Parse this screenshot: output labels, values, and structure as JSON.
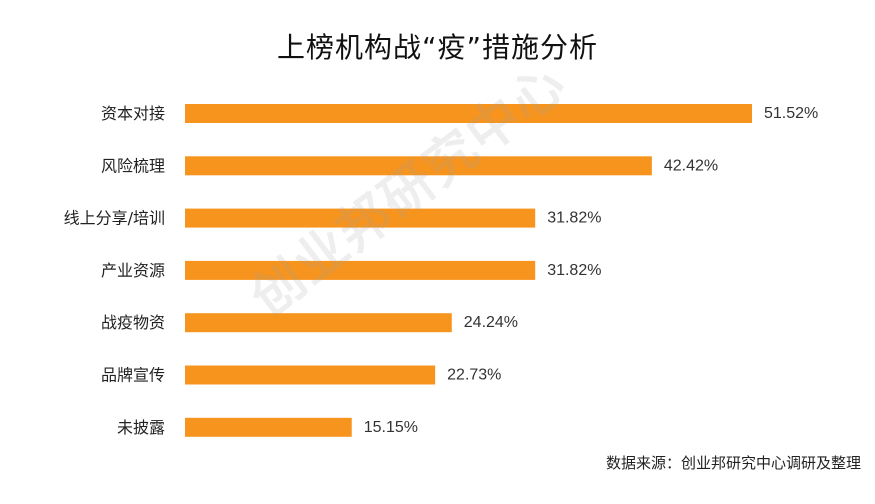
{
  "chart_data": {
    "type": "bar",
    "orientation": "horizontal",
    "title": "上榜机构战“疫”措施分析",
    "categories": [
      "资本对接",
      "风险梳理",
      "线上分享/培训",
      "产业资源",
      "战疫物资",
      "品牌宣传",
      "未披露"
    ],
    "values": [
      51.52,
      42.42,
      31.82,
      31.82,
      24.24,
      22.73,
      15.15
    ],
    "value_labels": [
      "51.52%",
      "42.42%",
      "31.82%",
      "31.82%",
      "24.24%",
      "22.73%",
      "15.15%"
    ],
    "unit": "%",
    "xlim": [
      0,
      51.52
    ],
    "grid": false,
    "legend": "none",
    "bar_color": "#F7941E"
  },
  "watermark": "创业邦研究中心",
  "source": "数据来源：创业邦研究中心调研及整理"
}
